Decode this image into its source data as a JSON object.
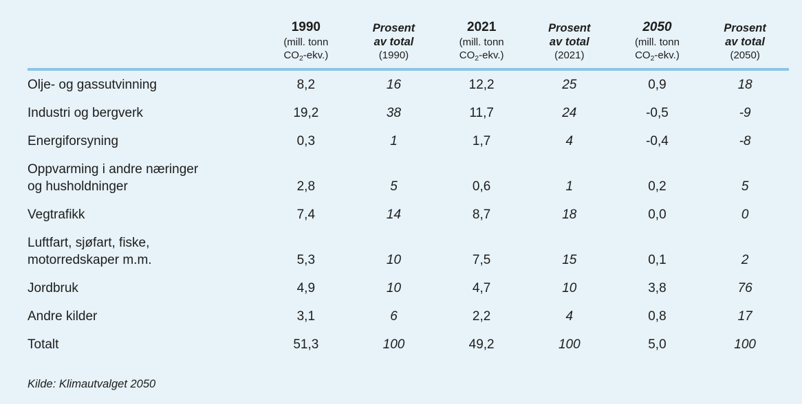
{
  "page": {
    "colors": {
      "background": "#e7f2f9",
      "rule": "#8bc5e5",
      "text": "#1d1d1b"
    }
  },
  "chart_data": {
    "type": "table",
    "source": "Kilde: Klimautvalget 2050",
    "headers": [
      {
        "kind": "amount",
        "year": "1990",
        "unit_line1": "(mill. tonn",
        "unit_co": "CO",
        "unit_sub": "2",
        "unit_rest": "-ekv.)"
      },
      {
        "kind": "percent",
        "line1": "Prosent",
        "line2": "av total",
        "line3": "(1990)"
      },
      {
        "kind": "amount",
        "year": "2021",
        "unit_line1": "(mill. tonn",
        "unit_co": "CO",
        "unit_sub": "2",
        "unit_rest": "-ekv.)"
      },
      {
        "kind": "percent",
        "line1": "Prosent",
        "line2": "av total",
        "line3": "(2021)"
      },
      {
        "kind": "amount",
        "year": "2050",
        "unit_line1": "(mill. tonn",
        "unit_co": "CO",
        "unit_sub": "2",
        "unit_rest": "-ekv.)"
      },
      {
        "kind": "percent",
        "line1": "Prosent",
        "line2": "av total",
        "line3": "(2050)"
      }
    ],
    "rows": [
      {
        "label1": "Olje- og gassutvinning",
        "label2": "",
        "values": [
          "8,2",
          "16",
          "12,2",
          "25",
          "0,9",
          "18"
        ]
      },
      {
        "label1": "Industri og bergverk",
        "label2": "",
        "values": [
          "19,2",
          "38",
          "11,7",
          "24",
          "-0,5",
          "-9"
        ]
      },
      {
        "label1": "Energiforsyning",
        "label2": "",
        "values": [
          "0,3",
          "1",
          "1,7",
          "4",
          "-0,4",
          "-8"
        ]
      },
      {
        "label1": "Oppvarming i andre næringer",
        "label2": "og husholdninger",
        "values": [
          "2,8",
          "5",
          "0,6",
          "1",
          "0,2",
          "5"
        ]
      },
      {
        "label1": "Vegtrafikk",
        "label2": "",
        "values": [
          "7,4",
          "14",
          "8,7",
          "18",
          "0,0",
          "0"
        ]
      },
      {
        "label1": "Luftfart, sjøfart, fiske,",
        "label2": "motorredskaper m.m.",
        "values": [
          "5,3",
          "10",
          "7,5",
          "15",
          "0,1",
          "2"
        ]
      },
      {
        "label1": "Jordbruk",
        "label2": "",
        "values": [
          "4,9",
          "10",
          "4,7",
          "10",
          "3,8",
          "76"
        ]
      },
      {
        "label1": "Andre kilder",
        "label2": "",
        "values": [
          "3,1",
          "6",
          "2,2",
          "4",
          "0,8",
          "17"
        ]
      },
      {
        "label1": "Totalt",
        "label2": "",
        "values": [
          "51,3",
          "100",
          "49,2",
          "100",
          "5,0",
          "100"
        ]
      }
    ]
  }
}
